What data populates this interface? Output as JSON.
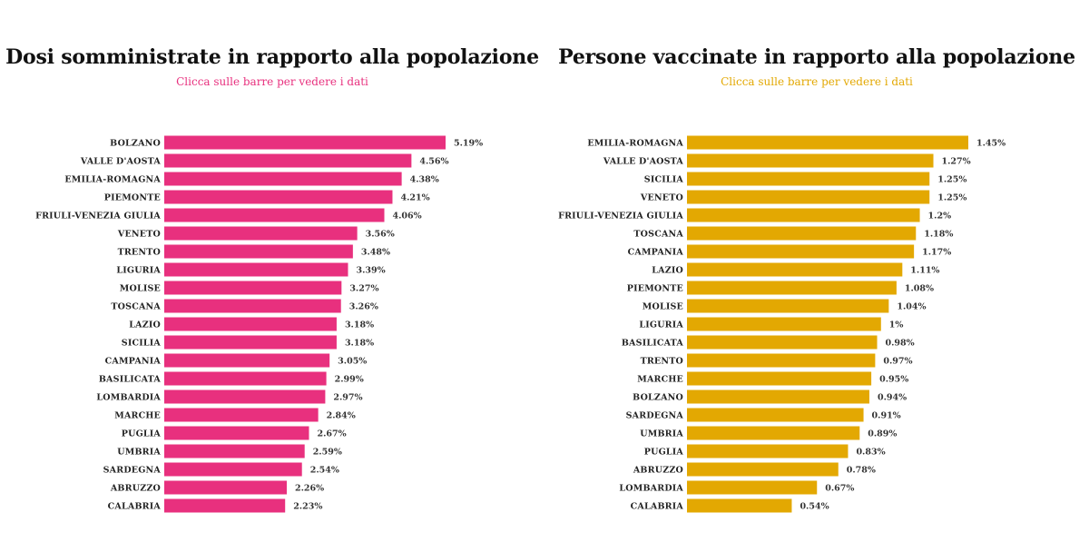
{
  "colors": {
    "left_bar": "#e8307e",
    "left_subtitle": "#e8307e",
    "right_bar": "#e3a802",
    "right_subtitle": "#e3a802"
  },
  "chart_data": [
    {
      "type": "bar",
      "orientation": "horizontal",
      "title": "Dosi somministrate in rapporto alla popolazione",
      "subtitle": "Clicca sulle barre per vedere i dati",
      "categories": [
        "BOLZANO",
        "VALLE D'AOSTA",
        "EMILIA-ROMAGNA",
        "PIEMONTE",
        "FRIULI-VENEZIA GIULIA",
        "VENETO",
        "TRENTO",
        "LIGURIA",
        "MOLISE",
        "TOSCANA",
        "LAZIO",
        "SICILIA",
        "CAMPANIA",
        "BASILICATA",
        "LOMBARDIA",
        "MARCHE",
        "PUGLIA",
        "UMBRIA",
        "SARDEGNA",
        "ABRUZZO",
        "CALABRIA"
      ],
      "values": [
        5.19,
        4.56,
        4.38,
        4.21,
        4.06,
        3.56,
        3.48,
        3.39,
        3.27,
        3.26,
        3.18,
        3.18,
        3.05,
        2.99,
        2.97,
        2.84,
        2.67,
        2.59,
        2.54,
        2.26,
        2.23
      ],
      "value_labels": [
        "5.19%",
        "4.56%",
        "4.38%",
        "4.21%",
        "4.06%",
        "3.56%",
        "3.48%",
        "3.39%",
        "3.27%",
        "3.26%",
        "3.18%",
        "3.18%",
        "3.05%",
        "2.99%",
        "2.97%",
        "2.84%",
        "2.67%",
        "2.59%",
        "2.54%",
        "2.26%",
        "2.23%"
      ],
      "xlim": [
        0,
        5.19
      ]
    },
    {
      "type": "bar",
      "orientation": "horizontal",
      "title": "Persone vaccinate in rapporto alla popolazione",
      "subtitle": "Clicca sulle barre per vedere i dati",
      "categories": [
        "EMILIA-ROMAGNA",
        "VALLE D'AOSTA",
        "SICILIA",
        "VENETO",
        "FRIULI-VENEZIA GIULIA",
        "TOSCANA",
        "CAMPANIA",
        "LAZIO",
        "PIEMONTE",
        "MOLISE",
        "LIGURIA",
        "BASILICATA",
        "TRENTO",
        "MARCHE",
        "BOLZANO",
        "SARDEGNA",
        "UMBRIA",
        "PUGLIA",
        "ABRUZZO",
        "LOMBARDIA",
        "CALABRIA"
      ],
      "values": [
        1.45,
        1.27,
        1.25,
        1.25,
        1.2,
        1.18,
        1.17,
        1.11,
        1.08,
        1.04,
        1,
        0.98,
        0.97,
        0.95,
        0.94,
        0.91,
        0.89,
        0.83,
        0.78,
        0.67,
        0.54
      ],
      "value_labels": [
        "1.45%",
        "1.27%",
        "1.25%",
        "1.25%",
        "1.2%",
        "1.18%",
        "1.17%",
        "1.11%",
        "1.08%",
        "1.04%",
        "1%",
        "0.98%",
        "0.97%",
        "0.95%",
        "0.94%",
        "0.91%",
        "0.89%",
        "0.83%",
        "0.78%",
        "0.67%",
        "0.54%"
      ],
      "xlim": [
        0,
        1.45
      ]
    }
  ]
}
